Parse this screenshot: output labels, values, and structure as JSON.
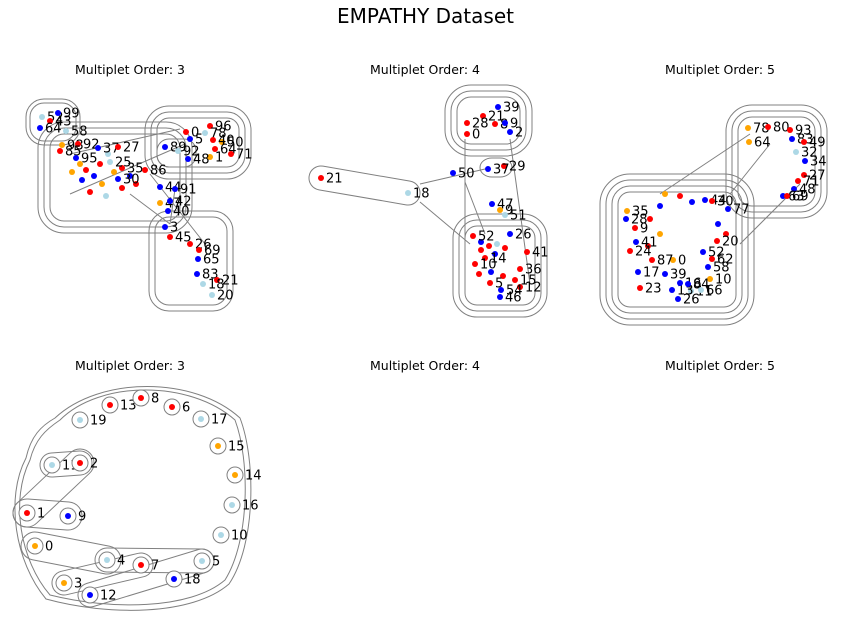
{
  "figure": {
    "title": "EMPATHY Dataset"
  },
  "colors": {
    "red": "#ff0000",
    "blue": "#0000ff",
    "lightblue": "#add8e6",
    "orange": "#ffa500",
    "hull": "#808080"
  },
  "chart_data": [
    {
      "type": "hypergraph",
      "title": "Multiplet Order: 3",
      "nodes": [
        {
          "label": "52",
          "color": "lightblue"
        },
        {
          "label": "99",
          "color": "blue"
        },
        {
          "label": "43",
          "color": "red"
        },
        {
          "label": "64",
          "color": "blue"
        },
        {
          "label": "58",
          "color": "lightblue"
        },
        {
          "label": "98",
          "color": "orange"
        },
        {
          "label": "92",
          "color": "red"
        },
        {
          "label": "85",
          "color": "red"
        },
        {
          "label": "37",
          "color": "blue"
        },
        {
          "label": "27",
          "color": "red"
        },
        {
          "label": "95",
          "color": "blue"
        },
        {
          "label": "35",
          "color": "red"
        },
        {
          "label": "25",
          "color": "lightblue"
        },
        {
          "label": "44",
          "color": "blue"
        },
        {
          "label": "30",
          "color": "blue"
        },
        {
          "label": "47",
          "color": "orange"
        },
        {
          "label": "42",
          "color": "blue"
        },
        {
          "label": "40",
          "color": "blue"
        },
        {
          "label": "86",
          "color": "red"
        },
        {
          "label": "96",
          "color": "red"
        },
        {
          "label": "0",
          "color": "red"
        },
        {
          "label": "5",
          "color": "blue"
        },
        {
          "label": "78",
          "color": "lightblue"
        },
        {
          "label": "50",
          "color": "orange"
        },
        {
          "label": "40",
          "color": "red"
        },
        {
          "label": "64",
          "color": "red"
        },
        {
          "label": "1",
          "color": "orange"
        },
        {
          "label": "71",
          "color": "red"
        },
        {
          "label": "89",
          "color": "blue"
        },
        {
          "label": "92",
          "color": "lightblue"
        },
        {
          "label": "48",
          "color": "blue"
        },
        {
          "label": "91",
          "color": "blue"
        },
        {
          "label": "3",
          "color": "blue"
        },
        {
          "label": "45",
          "color": "red"
        },
        {
          "label": "26",
          "color": "red"
        },
        {
          "label": "69",
          "color": "red"
        },
        {
          "label": "65",
          "color": "blue"
        },
        {
          "label": "83",
          "color": "blue"
        },
        {
          "label": "21",
          "color": "red"
        },
        {
          "label": "18",
          "color": "lightblue"
        },
        {
          "label": "20",
          "color": "lightblue"
        }
      ]
    },
    {
      "type": "hypergraph",
      "title": "Multiplet Order: 4",
      "nodes": [
        {
          "label": "39",
          "color": "blue"
        },
        {
          "label": "21",
          "color": "red"
        },
        {
          "label": "8",
          "color": "red"
        },
        {
          "label": "28",
          "color": "red"
        },
        {
          "label": "0",
          "color": "red"
        },
        {
          "label": "9",
          "color": "blue"
        },
        {
          "label": "2",
          "color": "blue"
        },
        {
          "label": "29",
          "color": "red"
        },
        {
          "label": "37",
          "color": "blue"
        },
        {
          "label": "50",
          "color": "blue"
        },
        {
          "label": "21",
          "color": "red"
        },
        {
          "label": "18",
          "color": "lightblue"
        },
        {
          "label": "47",
          "color": "blue"
        },
        {
          "label": "9",
          "color": "orange"
        },
        {
          "label": "51",
          "color": "lightblue"
        },
        {
          "label": "52",
          "color": "red"
        },
        {
          "label": "26",
          "color": "blue"
        },
        {
          "label": "41",
          "color": "red"
        },
        {
          "label": "14",
          "color": "red"
        },
        {
          "label": "10",
          "color": "red"
        },
        {
          "label": "36",
          "color": "red"
        },
        {
          "label": "12",
          "color": "red"
        },
        {
          "label": "15",
          "color": "red"
        },
        {
          "label": "54",
          "color": "blue"
        },
        {
          "label": "46",
          "color": "blue"
        },
        {
          "label": "5",
          "color": "red"
        }
      ]
    },
    {
      "type": "hypergraph",
      "title": "Multiplet Order: 5",
      "nodes": [
        {
          "label": "78",
          "color": "orange"
        },
        {
          "label": "80",
          "color": "red"
        },
        {
          "label": "93",
          "color": "red"
        },
        {
          "label": "64",
          "color": "orange"
        },
        {
          "label": "83",
          "color": "blue"
        },
        {
          "label": "49",
          "color": "red"
        },
        {
          "label": "32",
          "color": "lightblue"
        },
        {
          "label": "34",
          "color": "blue"
        },
        {
          "label": "27",
          "color": "red"
        },
        {
          "label": "71",
          "color": "red"
        },
        {
          "label": "48",
          "color": "blue"
        },
        {
          "label": "63",
          "color": "blue"
        },
        {
          "label": "69",
          "color": "red"
        },
        {
          "label": "44",
          "color": "blue"
        },
        {
          "label": "30",
          "color": "red"
        },
        {
          "label": "77",
          "color": "blue"
        },
        {
          "label": "35",
          "color": "orange"
        },
        {
          "label": "28",
          "color": "blue"
        },
        {
          "label": "9",
          "color": "red"
        },
        {
          "label": "41",
          "color": "blue"
        },
        {
          "label": "24",
          "color": "red"
        },
        {
          "label": "52",
          "color": "blue"
        },
        {
          "label": "58",
          "color": "blue"
        },
        {
          "label": "10",
          "color": "orange"
        },
        {
          "label": "26",
          "color": "blue"
        },
        {
          "label": "11",
          "color": "lightblue"
        },
        {
          "label": "13",
          "color": "blue"
        },
        {
          "label": "16",
          "color": "blue"
        },
        {
          "label": "84",
          "color": "blue"
        },
        {
          "label": "66",
          "color": "lightblue"
        },
        {
          "label": "0",
          "color": "orange"
        },
        {
          "label": "87",
          "color": "red"
        },
        {
          "label": "39",
          "color": "blue"
        },
        {
          "label": "20",
          "color": "red"
        },
        {
          "label": "62",
          "color": "red"
        },
        {
          "label": "17",
          "color": "blue"
        },
        {
          "label": "23",
          "color": "red"
        }
      ]
    },
    {
      "type": "hypergraph",
      "title": "Multiplet Order: 3",
      "nodes": [
        {
          "label": "19",
          "color": "lightblue"
        },
        {
          "label": "13",
          "color": "red"
        },
        {
          "label": "8",
          "color": "red"
        },
        {
          "label": "6",
          "color": "red"
        },
        {
          "label": "17",
          "color": "lightblue"
        },
        {
          "label": "15",
          "color": "orange"
        },
        {
          "label": "11",
          "color": "lightblue"
        },
        {
          "label": "2",
          "color": "red"
        },
        {
          "label": "14",
          "color": "orange"
        },
        {
          "label": "16",
          "color": "lightblue"
        },
        {
          "label": "1",
          "color": "red"
        },
        {
          "label": "9",
          "color": "blue"
        },
        {
          "label": "0",
          "color": "orange"
        },
        {
          "label": "10",
          "color": "lightblue"
        },
        {
          "label": "4",
          "color": "lightblue"
        },
        {
          "label": "7",
          "color": "red"
        },
        {
          "label": "18",
          "color": "blue"
        },
        {
          "label": "5",
          "color": "lightblue"
        },
        {
          "label": "3",
          "color": "orange"
        },
        {
          "label": "12",
          "color": "blue"
        }
      ],
      "hyperedges": [
        [
          "1",
          "2",
          "9"
        ],
        [
          "0",
          "4",
          "3"
        ],
        [
          "7",
          "5",
          "12"
        ],
        [
          "11",
          "19",
          "13"
        ],
        [
          "5",
          "3",
          "12"
        ],
        [
          "6",
          "13",
          "2"
        ]
      ]
    },
    {
      "type": "hypergraph",
      "title": "Multiplet Order: 4",
      "nodes": []
    },
    {
      "type": "hypergraph",
      "title": "Multiplet Order: 5",
      "nodes": []
    }
  ]
}
